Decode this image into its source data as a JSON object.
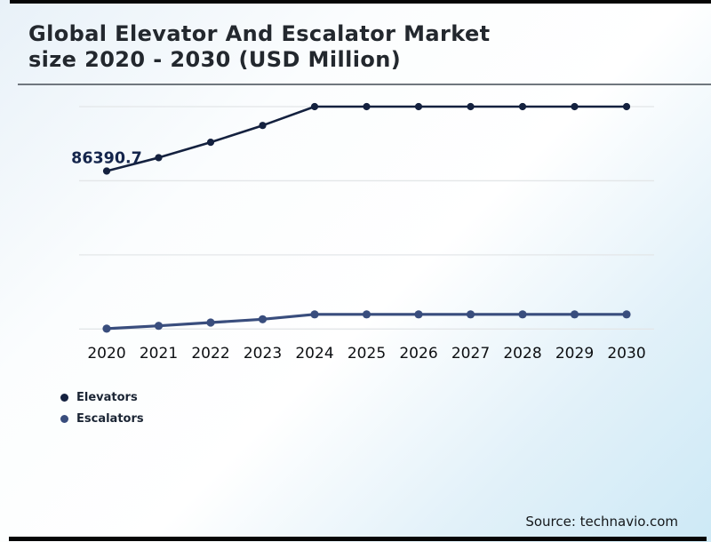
{
  "header": {
    "title_line1": "Global Elevator And Escalator Market",
    "title_line2": "size 2020 - 2030 (USD Million)"
  },
  "footer": {
    "source": "Source: technavio.com"
  },
  "colors": {
    "elevators_series": "#14213f",
    "escalators_series": "#394d7d",
    "data_label": "#14254c",
    "gridline": "#e3e6e8",
    "divider": "#70777e",
    "frame_bar": "#060606",
    "title_text": "#23282e",
    "axis_label": "#0d0f12",
    "legend_text": "#1b2534",
    "source_text": "#15181b",
    "background_start": "#e8f1f8",
    "background_end": "#cde9f6"
  },
  "legend": {
    "items": [
      {
        "label": "Elevators",
        "color": "#14213f"
      },
      {
        "label": "Escalators",
        "color": "#394d7d"
      }
    ]
  },
  "chart_data": {
    "type": "line",
    "title": "Global Elevator And Escalator Market size 2020 - 2030 (USD Million)",
    "xlabel": "",
    "ylabel": "",
    "categories": [
      "2020",
      "2021",
      "2022",
      "2023",
      "2024",
      "2025",
      "2026",
      "2027",
      "2028",
      "2029",
      "2030"
    ],
    "series": [
      {
        "name": "Elevators",
        "color": "#14213f",
        "values": [
          86390.7,
          93700,
          102100,
          111300,
          121600,
          121600,
          121600,
          121600,
          121600,
          121600,
          121600
        ],
        "data_label": {
          "index": 0,
          "text": "86390.7"
        }
      },
      {
        "name": "Escalators",
        "color": "#394d7d",
        "values": [
          200,
          1750,
          3550,
          5350,
          8000,
          8000,
          8000,
          8000,
          8000,
          8000,
          8000
        ]
      }
    ],
    "ylim": [
      0,
      125000
    ],
    "grid": "horizontal, 4 unlabeled gridlines",
    "y_axis": "unlabeled; only the 2020 Elevators point carries the label 86390.7, other values estimated from point positions",
    "legend_position": "bottom-left"
  }
}
